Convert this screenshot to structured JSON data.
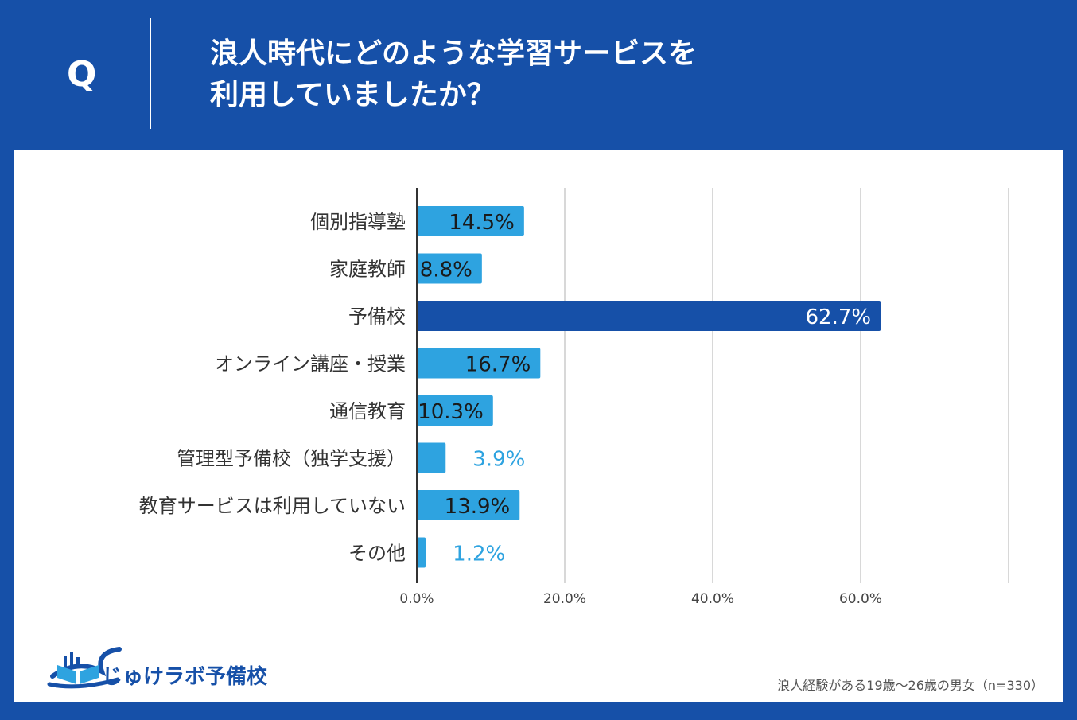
{
  "header": {
    "q_label": "Q",
    "question_line1": "浪人時代にどのような学習サービスを",
    "question_line2": "利用していましたか？"
  },
  "colors": {
    "background": "#1650a8",
    "bar_light": "#2ea3e0",
    "bar_highlight": "#1650a8",
    "gridline": "#cccccc",
    "axis": "#333333"
  },
  "chart_data": {
    "type": "bar",
    "orientation": "horizontal",
    "title": "浪人時代にどのような学習サービスを利用していましたか？",
    "categories": [
      "個別指導塾",
      "家庭教師",
      "予備校",
      "オンライン講座・授業",
      "通信教育",
      "管理型予備校（独学支援）",
      "教育サービスは利用していない",
      "その他"
    ],
    "values": [
      14.5,
      8.8,
      62.7,
      16.7,
      10.3,
      3.9,
      13.9,
      1.2
    ],
    "value_labels": [
      "14.5%",
      "8.8%",
      "62.7%",
      "16.7%",
      "10.3%",
      "3.9%",
      "13.9%",
      "1.2%"
    ],
    "highlight_index": 2,
    "xlim": [
      0,
      80
    ],
    "x_ticks": [
      0,
      20,
      40,
      60,
      80
    ],
    "x_tick_labels": [
      "0.0%",
      "20.0%",
      "40.0%",
      "60.0%",
      ""
    ],
    "xlabel": "",
    "ylabel": "",
    "grid": true
  },
  "brand": {
    "name": "じゅけラボ予備校",
    "logo_icon": "book-logo-icon"
  },
  "footnote": "浪人経験がある19歳～26歳の男女（n=330）"
}
